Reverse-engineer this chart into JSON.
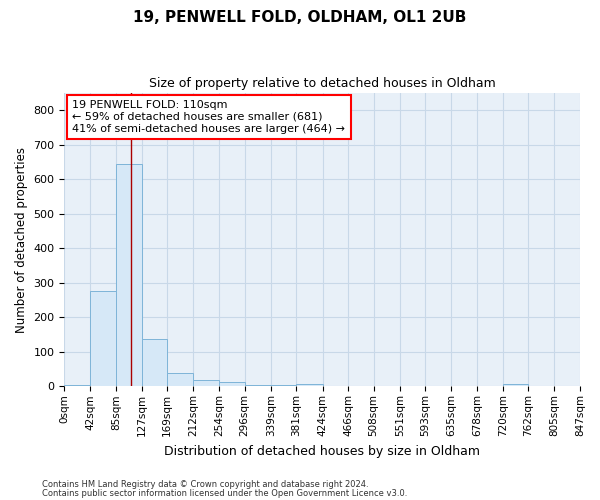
{
  "title": "19, PENWELL FOLD, OLDHAM, OL1 2UB",
  "subtitle": "Size of property relative to detached houses in Oldham",
  "xlabel": "Distribution of detached houses by size in Oldham",
  "ylabel": "Number of detached properties",
  "bar_values": [
    5,
    275,
    645,
    138,
    38,
    20,
    12,
    5,
    5,
    8,
    0,
    0,
    0,
    0,
    0,
    0,
    0,
    8,
    0,
    0
  ],
  "bin_edges": [
    0,
    42,
    85,
    127,
    169,
    212,
    254,
    296,
    339,
    381,
    424,
    466,
    508,
    551,
    593,
    635,
    678,
    720,
    762,
    805,
    847
  ],
  "tick_labels": [
    "0sqm",
    "42sqm",
    "85sqm",
    "127sqm",
    "169sqm",
    "212sqm",
    "254sqm",
    "296sqm",
    "339sqm",
    "381sqm",
    "424sqm",
    "466sqm",
    "508sqm",
    "551sqm",
    "593sqm",
    "635sqm",
    "678sqm",
    "720sqm",
    "762sqm",
    "805sqm",
    "847sqm"
  ],
  "bar_facecolor": "#d6e8f7",
  "bar_edgecolor": "#7eb4d8",
  "red_line_x": 110,
  "annotation_text": "19 PENWELL FOLD: 110sqm\n← 59% of detached houses are smaller (681)\n41% of semi-detached houses are larger (464) →",
  "grid_color": "#c8d8e8",
  "background_color": "#e8f0f8",
  "ylim": [
    0,
    850
  ],
  "yticks": [
    0,
    100,
    200,
    300,
    400,
    500,
    600,
    700,
    800
  ],
  "footer_line1": "Contains HM Land Registry data © Crown copyright and database right 2024.",
  "footer_line2": "Contains public sector information licensed under the Open Government Licence v3.0."
}
